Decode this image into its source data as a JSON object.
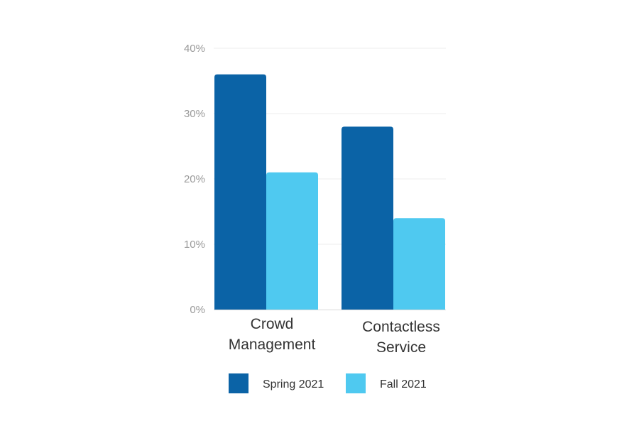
{
  "chart_data": {
    "type": "bar",
    "title": "",
    "xlabel": "",
    "ylabel": "",
    "categories": [
      [
        "Crowd",
        "Management"
      ],
      [
        "Contactless",
        "Service"
      ]
    ],
    "series": [
      {
        "name": "Spring 2021",
        "color": "#0b63a6",
        "values": [
          36,
          28
        ]
      },
      {
        "name": "Fall 2021",
        "color": "#4fc9f0",
        "values": [
          21,
          14
        ]
      }
    ],
    "ylim": [
      0,
      40
    ],
    "yticks": [
      {
        "value": 0,
        "label": "0%"
      },
      {
        "value": 10,
        "label": "10%"
      },
      {
        "value": 20,
        "label": "20%"
      },
      {
        "value": 30,
        "label": "30%"
      },
      {
        "value": 40,
        "label": "40%"
      }
    ],
    "grid": true,
    "legend_position": "bottom-center"
  }
}
